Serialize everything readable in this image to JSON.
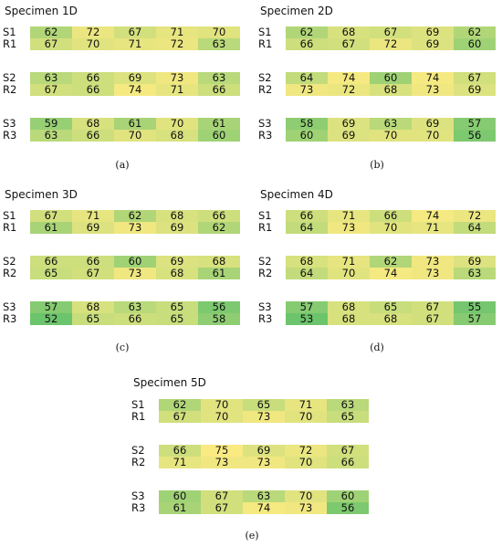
{
  "chart_data": [
    {
      "type": "heatmap",
      "title": "Specimen 1D",
      "caption": "(a)",
      "groups": [
        {
          "rows": [
            {
              "label": "S1",
              "values": [
                62,
                72,
                67,
                71,
                70
              ]
            },
            {
              "label": "R1",
              "values": [
                67,
                70,
                71,
                72,
                63
              ]
            }
          ]
        },
        {
          "rows": [
            {
              "label": "S2",
              "values": [
                63,
                66,
                69,
                73,
                63
              ]
            },
            {
              "label": "R2",
              "values": [
                67,
                66,
                74,
                71,
                66
              ]
            }
          ]
        },
        {
          "rows": [
            {
              "label": "S3",
              "values": [
                59,
                68,
                61,
                70,
                61
              ]
            },
            {
              "label": "R3",
              "values": [
                63,
                66,
                70,
                68,
                60
              ]
            }
          ]
        }
      ]
    },
    {
      "type": "heatmap",
      "title": "Specimen 2D",
      "caption": "(b)",
      "groups": [
        {
          "rows": [
            {
              "label": "S1",
              "values": [
                62,
                68,
                67,
                69,
                62
              ]
            },
            {
              "label": "R1",
              "values": [
                66,
                67,
                72,
                69,
                60
              ]
            }
          ]
        },
        {
          "rows": [
            {
              "label": "S2",
              "values": [
                64,
                74,
                60,
                74,
                67
              ]
            },
            {
              "label": "R2",
              "values": [
                73,
                72,
                68,
                73,
                69
              ]
            }
          ]
        },
        {
          "rows": [
            {
              "label": "S3",
              "values": [
                58,
                69,
                63,
                69,
                57
              ]
            },
            {
              "label": "R3",
              "values": [
                60,
                69,
                70,
                70,
                56
              ]
            }
          ]
        }
      ]
    },
    {
      "type": "heatmap",
      "title": "Specimen 3D",
      "caption": "(c)",
      "groups": [
        {
          "rows": [
            {
              "label": "S1",
              "values": [
                67,
                71,
                62,
                68,
                66
              ]
            },
            {
              "label": "R1",
              "values": [
                61,
                69,
                73,
                69,
                62
              ]
            }
          ]
        },
        {
          "rows": [
            {
              "label": "S2",
              "values": [
                66,
                66,
                60,
                69,
                68
              ]
            },
            {
              "label": "R2",
              "values": [
                65,
                67,
                73,
                68,
                61
              ]
            }
          ]
        },
        {
          "rows": [
            {
              "label": "S3",
              "values": [
                57,
                68,
                63,
                65,
                56
              ]
            },
            {
              "label": "R3",
              "values": [
                52,
                65,
                66,
                65,
                58
              ]
            }
          ]
        }
      ]
    },
    {
      "type": "heatmap",
      "title": "Specimen 4D",
      "caption": "(d)",
      "groups": [
        {
          "rows": [
            {
              "label": "S1",
              "values": [
                66,
                71,
                66,
                74,
                72
              ]
            },
            {
              "label": "R1",
              "values": [
                64,
                73,
                70,
                71,
                64
              ]
            }
          ]
        },
        {
          "rows": [
            {
              "label": "S2",
              "values": [
                68,
                71,
                62,
                73,
                69
              ]
            },
            {
              "label": "R2",
              "values": [
                64,
                70,
                74,
                73,
                63
              ]
            }
          ]
        },
        {
          "rows": [
            {
              "label": "S3",
              "values": [
                57,
                68,
                65,
                67,
                55
              ]
            },
            {
              "label": "R3",
              "values": [
                53,
                68,
                68,
                67,
                57
              ]
            }
          ]
        }
      ]
    },
    {
      "type": "heatmap",
      "title": "Specimen 5D",
      "caption": "(e)",
      "groups": [
        {
          "rows": [
            {
              "label": "S1",
              "values": [
                62,
                70,
                65,
                71,
                63
              ]
            },
            {
              "label": "R1",
              "values": [
                67,
                70,
                73,
                70,
                65
              ]
            }
          ]
        },
        {
          "rows": [
            {
              "label": "S2",
              "values": [
                66,
                75,
                69,
                72,
                67
              ]
            },
            {
              "label": "R2",
              "values": [
                71,
                73,
                73,
                70,
                66
              ]
            }
          ]
        },
        {
          "rows": [
            {
              "label": "S3",
              "values": [
                60,
                67,
                63,
                70,
                60
              ]
            },
            {
              "label": "R3",
              "values": [
                61,
                67,
                74,
                73,
                56
              ]
            }
          ]
        }
      ]
    }
  ],
  "colors": {
    "low": "#6cc46c",
    "mid": "#c6dc7c",
    "high": "#faea82"
  }
}
